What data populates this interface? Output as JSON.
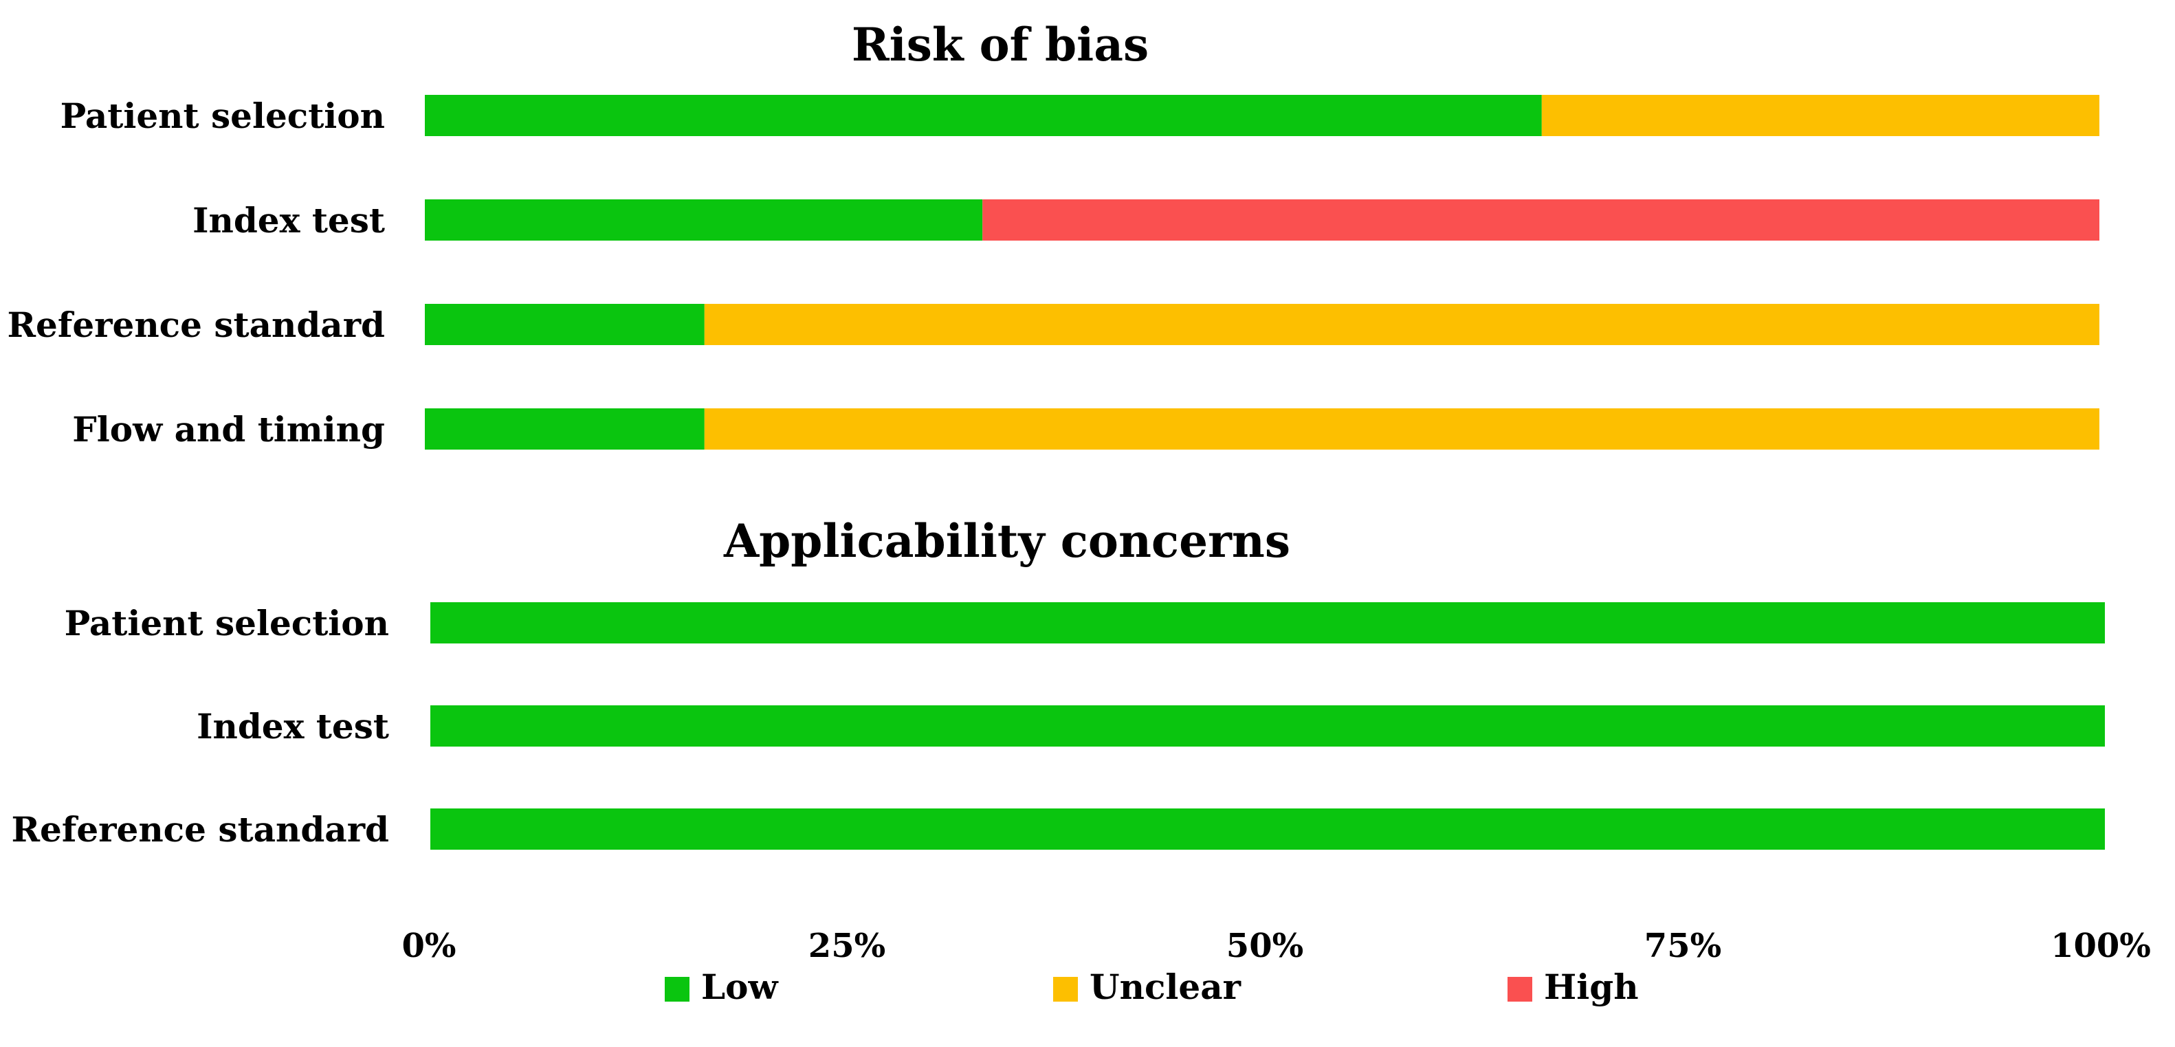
{
  "chart_data": {
    "type": "bar",
    "orientation": "horizontal",
    "stacked": true,
    "value_unit": "percent",
    "xlim": [
      0,
      100
    ],
    "x_ticks": [
      "0%",
      "25%",
      "50%",
      "75%",
      "100%"
    ],
    "grid": false,
    "legend_position": "bottom",
    "categories": [
      "Low",
      "Unclear",
      "High"
    ],
    "colors": {
      "Low": "#0ac50f",
      "Unclear": "#fdbf00",
      "High": "#fa5050"
    },
    "panels": [
      {
        "title": "Risk of bias",
        "rows": [
          {
            "label": "Patient selection",
            "values": {
              "Low": 66.7,
              "Unclear": 33.3,
              "High": 0
            }
          },
          {
            "label": "Index test",
            "values": {
              "Low": 33.3,
              "Unclear": 0,
              "High": 66.7
            }
          },
          {
            "label": "Reference standard",
            "values": {
              "Low": 16.7,
              "Unclear": 83.3,
              "High": 0
            }
          },
          {
            "label": "Flow and timing",
            "values": {
              "Low": 16.7,
              "Unclear": 83.3,
              "High": 0
            }
          }
        ]
      },
      {
        "title": "Applicability concerns",
        "rows": [
          {
            "label": "Patient selection",
            "values": {
              "Low": 100,
              "Unclear": 0,
              "High": 0
            }
          },
          {
            "label": "Index test",
            "values": {
              "Low": 100,
              "Unclear": 0,
              "High": 0
            }
          },
          {
            "label": "Reference standard",
            "values": {
              "Low": 100,
              "Unclear": 0,
              "High": 0
            }
          }
        ]
      }
    ],
    "legend": [
      {
        "key": "Low",
        "label": "Low"
      },
      {
        "key": "Unclear",
        "label": "Unclear"
      },
      {
        "key": "High",
        "label": "High"
      }
    ]
  }
}
